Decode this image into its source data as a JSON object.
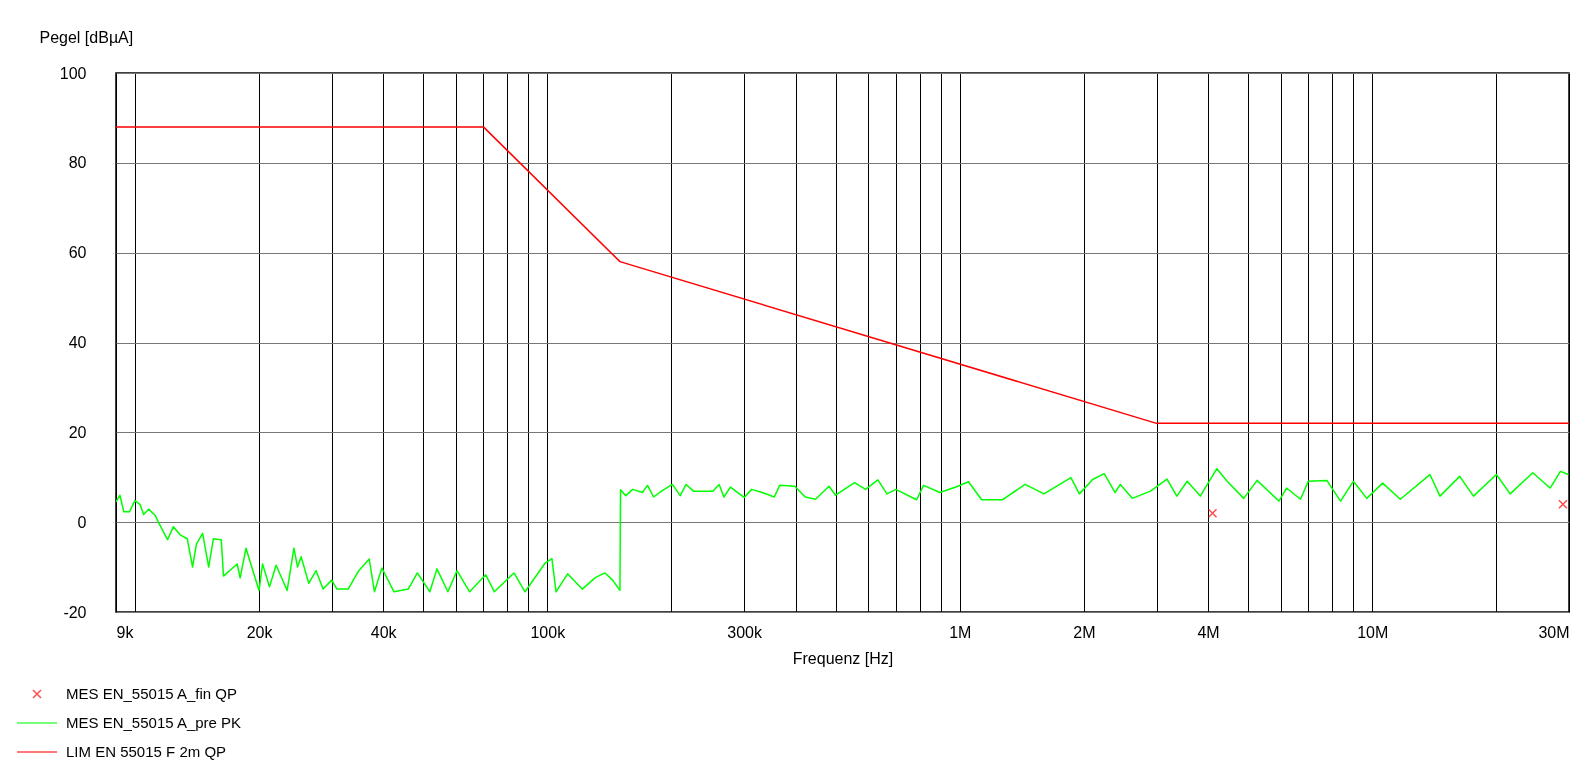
{
  "chart_data": {
    "type": "line",
    "xlabel": "Frequenz [Hz]",
    "ylabel": "Pegel [dBµA]",
    "log": "x",
    "grid": true,
    "legend": "bottom left",
    "xlim": [
      9000,
      30000000
    ],
    "ylim": [
      -20,
      100
    ],
    "xticks": [
      {
        "value": 9000,
        "label": "9k"
      },
      {
        "value": 10000,
        "label": null
      },
      {
        "value": 20000,
        "label": "20k"
      },
      {
        "value": 30000,
        "label": null
      },
      {
        "value": 40000,
        "label": "40k"
      },
      {
        "value": 50000,
        "label": null
      },
      {
        "value": 60000,
        "label": null
      },
      {
        "value": 70000,
        "label": null
      },
      {
        "value": 80000,
        "label": null
      },
      {
        "value": 90000,
        "label": null
      },
      {
        "value": 100000,
        "label": "100k"
      },
      {
        "value": 200000,
        "label": null
      },
      {
        "value": 300000,
        "label": "300k"
      },
      {
        "value": 400000,
        "label": null
      },
      {
        "value": 500000,
        "label": null
      },
      {
        "value": 600000,
        "label": null
      },
      {
        "value": 700000,
        "label": null
      },
      {
        "value": 800000,
        "label": null
      },
      {
        "value": 900000,
        "label": null
      },
      {
        "value": 1000000,
        "label": "1M"
      },
      {
        "value": 2000000,
        "label": "2M"
      },
      {
        "value": 3000000,
        "label": null
      },
      {
        "value": 4000000,
        "label": "4M"
      },
      {
        "value": 5000000,
        "label": null
      },
      {
        "value": 6000000,
        "label": null
      },
      {
        "value": 7000000,
        "label": null
      },
      {
        "value": 8000000,
        "label": null
      },
      {
        "value": 9000000,
        "label": null
      },
      {
        "value": 10000000,
        "label": "10M"
      },
      {
        "value": 20000000,
        "label": null
      },
      {
        "value": 30000000,
        "label": "30M"
      }
    ],
    "yticks": [
      -20,
      0,
      20,
      40,
      60,
      80,
      100
    ],
    "series": [
      {
        "name": "MES  EN_55015 A_fin QP",
        "type": "scatter",
        "marker": "cross",
        "color": "#ff0000",
        "x": [
          4100000,
          29000000
        ],
        "values": [
          2,
          4
        ]
      },
      {
        "name": "MES  EN_55015 A_pre PK",
        "color": "#00ff00",
        "x": [
          9000,
          9200,
          9400,
          9700,
          10000,
          10300,
          10500,
          10800,
          11200,
          11400,
          12000,
          12400,
          12900,
          13400,
          13800,
          14100,
          14600,
          15100,
          15500,
          16200,
          16400,
          17700,
          18000,
          18600,
          19200,
          20000,
          20400,
          21200,
          22000,
          23400,
          24300,
          24800,
          25300,
          26400,
          27500,
          28600,
          30000,
          30900,
          32900,
          34900,
          37000,
          38100,
          39700,
          42500,
          46000,
          48400,
          51900,
          54000,
          57400,
          60400,
          64800,
          70900,
          74400,
          83000,
          88300,
          98800,
          102600,
          105000,
          112000,
          121500,
          131000,
          138000,
          144000,
          150000,
          150500,
          155000,
          161000,
          170000,
          175000,
          181000,
          190000,
          201000,
          210000,
          217000,
          226000,
          252000,
          261000,
          268000,
          278000,
          300000,
          313000,
          332000,
          355000,
          366000,
          398000,
          422000,
          447000,
          482000,
          500000,
          556000,
          591000,
          633000,
          666000,
          700000,
          786000,
          817000,
          895000,
          990000,
          1050000,
          1130000,
          1270000,
          1440000,
          1600000,
          1860000,
          1950000,
          2100000,
          2240000,
          2380000,
          2450000,
          2620000,
          2900000,
          3180000,
          3360000,
          3560000,
          3830000,
          4200000,
          4450000,
          4880000,
          5260000,
          5940000,
          6200000,
          6700000,
          7000000,
          7760000,
          8380000,
          9000000,
          9700000,
          10600000,
          11700000,
          13800000,
          14600000,
          16300000,
          17600000,
          20000000,
          21600000,
          24500000,
          27000000,
          28600000,
          29900000
        ],
        "values": [
          4.5,
          6,
          2.3,
          2.3,
          4.8,
          3.9,
          1.7,
          2.9,
          1.5,
          0,
          -3.9,
          -1,
          -2.9,
          -3.7,
          -10,
          -4.9,
          -2.5,
          -10,
          -3.7,
          -3.9,
          -12,
          -9.3,
          -12.4,
          -5.8,
          -10,
          -15.2,
          -9.3,
          -14.4,
          -9.6,
          -15.2,
          -5.8,
          -10,
          -7.7,
          -13.6,
          -10.8,
          -14.9,
          -12.9,
          -14.9,
          -14.9,
          -10.8,
          -8.2,
          -15.5,
          -10.2,
          -15.5,
          -14.9,
          -11.3,
          -15.5,
          -10.4,
          -15.5,
          -10.8,
          -15.5,
          -11.7,
          -15.5,
          -11.3,
          -15.5,
          -9.1,
          -8.1,
          -15.5,
          -11.5,
          -14.9,
          -12.3,
          -11.3,
          -12.9,
          -15.2,
          7.2,
          5.9,
          7.3,
          6.6,
          8.2,
          5.6,
          7,
          8.4,
          5.9,
          8.4,
          6.9,
          6.9,
          8.4,
          5.6,
          7.8,
          5.5,
          7.3,
          6.6,
          5.6,
          8.2,
          8,
          5.6,
          5.1,
          8,
          6,
          8.8,
          7.3,
          9.4,
          6.3,
          7.3,
          5,
          8.2,
          6.6,
          8,
          9,
          5,
          5,
          8.4,
          6.3,
          9.9,
          6.3,
          9.5,
          10.8,
          6.6,
          8.4,
          5.3,
          6.9,
          9.6,
          5.8,
          9.1,
          5.8,
          11.9,
          9.1,
          5.3,
          9.3,
          4.7,
          7.6,
          5.1,
          9.1,
          9.3,
          4.7,
          9.1,
          5.3,
          8.7,
          5.1,
          10.6,
          5.8,
          10.2,
          5.8,
          10.6,
          6.3,
          11,
          7.6,
          11.3,
          10.6
        ]
      },
      {
        "name": "LIM  EN 55015 F 2m QP",
        "color": "#ff0000",
        "x": [
          9000,
          70000,
          150000,
          3000000,
          30000000
        ],
        "values": [
          88,
          88,
          58,
          22,
          22
        ]
      }
    ]
  }
}
